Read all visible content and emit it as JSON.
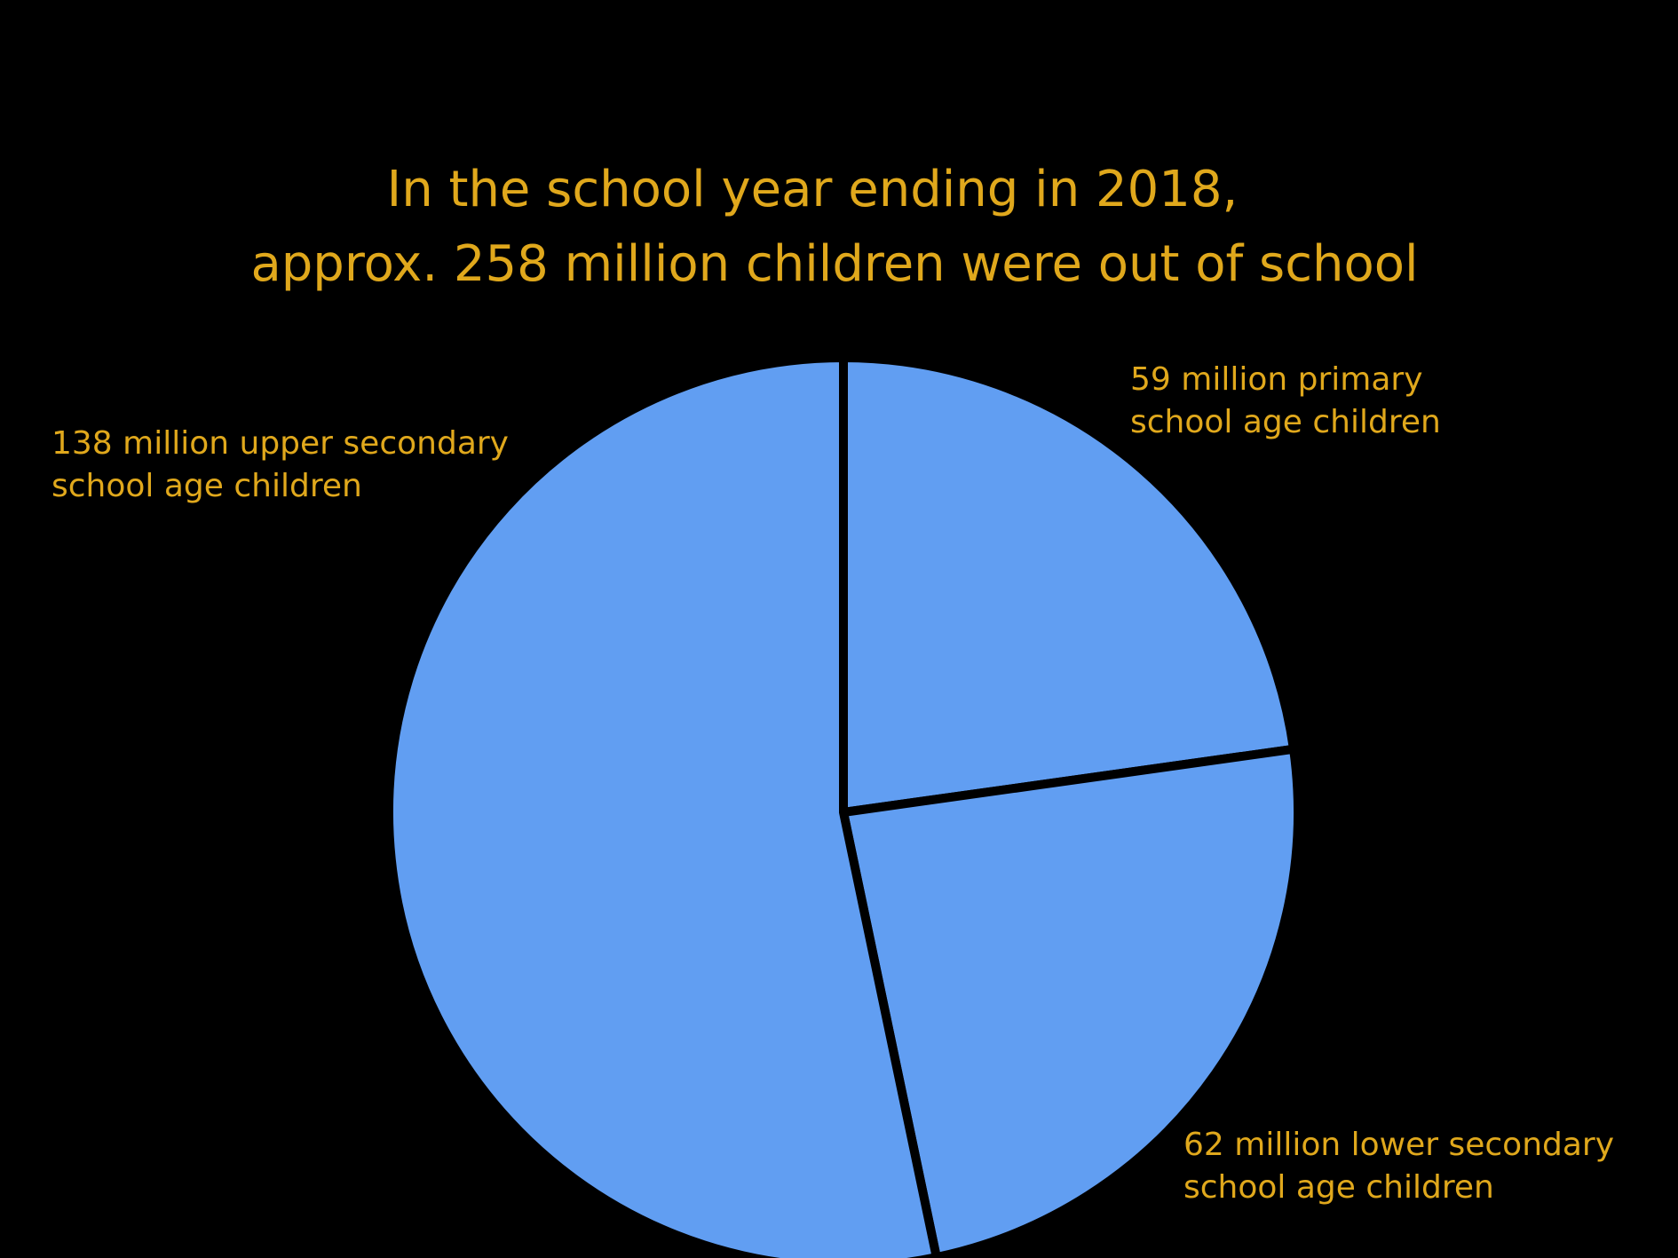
{
  "colors": {
    "background": "#000000",
    "slice_fill": "#619ef2",
    "slice_stroke": "#000000",
    "text": "#e0a81c"
  },
  "chart_data": {
    "type": "pie",
    "title_lines": [
      "In the school year ending in 2018,",
      "approx. 258 million children were out of school"
    ],
    "legend": "none",
    "slices": [
      {
        "value": 59,
        "unit": "million",
        "label_lines": [
          "59 million primary",
          "school age children"
        ]
      },
      {
        "value": 62,
        "unit": "million",
        "label_lines": [
          "62 million lower secondary",
          "school age children"
        ]
      },
      {
        "value": 138,
        "unit": "million",
        "label_lines": [
          "138 million upper secondary",
          "school age children"
        ]
      }
    ]
  }
}
